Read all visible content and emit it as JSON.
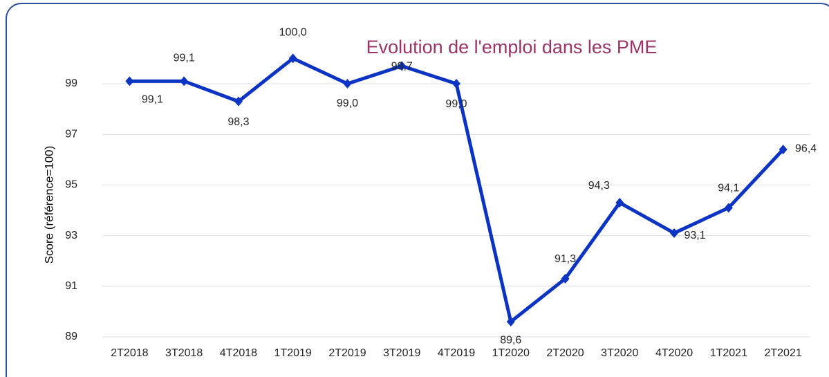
{
  "chart_data": {
    "type": "line",
    "title": "Evolution de l'emploi dans les PME",
    "y_label": "Score (référence=100)",
    "categories": [
      "2T2018",
      "3T2018",
      "4T2018",
      "1T2019",
      "2T2019",
      "3T2019",
      "4T2019",
      "1T2020",
      "2T2020",
      "3T2020",
      "4T2020",
      "1T2021",
      "2T2021"
    ],
    "series": [
      {
        "name": "Score",
        "color": "#0b33c4",
        "values": [
          99.1,
          99.1,
          98.3,
          100.0,
          99.0,
          99.7,
          99.0,
          89.6,
          91.3,
          94.3,
          93.1,
          94.1,
          96.4
        ],
        "value_labels": [
          "99,1",
          "99,1",
          "98,3",
          "100,0",
          "99,0",
          "99,7",
          "99,0",
          "89,6",
          "91,3",
          "94,3",
          "93,1",
          "94,1",
          "96,4"
        ]
      }
    ],
    "ylim": [
      89,
      101
    ],
    "yticks": [
      89,
      91,
      93,
      95,
      97,
      99
    ],
    "grid": true
  }
}
